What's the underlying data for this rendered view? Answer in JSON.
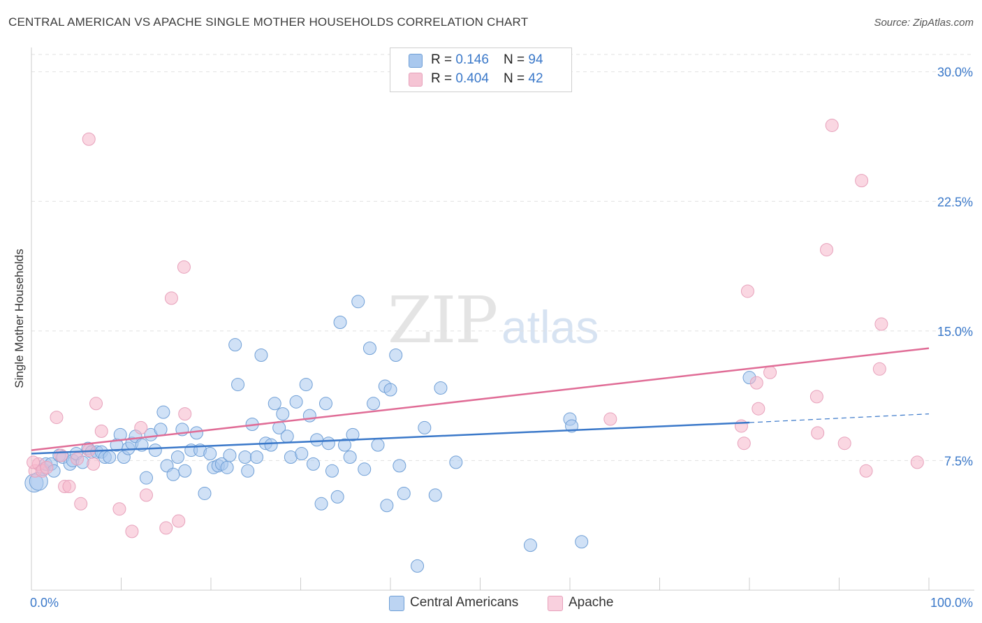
{
  "title": "CENTRAL AMERICAN VS APACHE SINGLE MOTHER HOUSEHOLDS CORRELATION CHART",
  "source": "Source: ZipAtlas.com",
  "watermark": {
    "zip": "ZIP",
    "atlas": "atlas"
  },
  "legend": {
    "rows": [
      {
        "r_label": "R = ",
        "r_value": "0.146",
        "n_label": "N = ",
        "n_value": "94"
      },
      {
        "r_label": "R = ",
        "r_value": "0.404",
        "n_label": "N = ",
        "n_value": "42"
      }
    ]
  },
  "bottom_legend": {
    "series1": "Central Americans",
    "series2": "Apache"
  },
  "colors": {
    "blue": "#3a78c9",
    "blue_fill": "#a9c8ee",
    "pink": "#e06c96",
    "pink_fill": "#f5b7cb",
    "grid": "#e1e1e1"
  },
  "chart_data": {
    "type": "scatter",
    "title": "CENTRAL AMERICAN VS APACHE SINGLE MOTHER HOUSEHOLDS CORRELATION CHART",
    "xlabel": "",
    "ylabel": "Single Mother Households",
    "xlim": [
      0,
      100
    ],
    "ylim": [
      0,
      31
    ],
    "x_tick_labels": [
      "0.0%",
      "100.0%"
    ],
    "y_ticks": [
      7.5,
      15.0,
      22.5,
      30.0
    ],
    "y_tick_labels": [
      "7.5%",
      "15.0%",
      "22.5%",
      "30.0%"
    ],
    "grid": "horizontal dashed",
    "legend_position": "top-center",
    "series": [
      {
        "name": "Central Americans",
        "r": 0.146,
        "n": 94,
        "trend": {
          "x0": 0,
          "y0": 7.9,
          "x1": 80,
          "y1": 9.7,
          "dashed_to_x": 100,
          "dashed_to_y": 10.2
        },
        "points": [
          [
            0.3,
            6.2
          ],
          [
            0.8,
            6.3
          ],
          [
            1.3,
            7.0
          ],
          [
            1.6,
            7.3
          ],
          [
            2.2,
            7.3
          ],
          [
            2.5,
            6.9
          ],
          [
            3.1,
            7.8
          ],
          [
            3.5,
            7.7
          ],
          [
            4.3,
            7.3
          ],
          [
            4.6,
            7.5
          ],
          [
            5.0,
            7.9
          ],
          [
            5.7,
            7.4
          ],
          [
            6.3,
            8.2
          ],
          [
            6.7,
            8.0
          ],
          [
            7.3,
            8.0
          ],
          [
            7.8,
            8.0
          ],
          [
            8.2,
            7.7
          ],
          [
            8.7,
            7.7
          ],
          [
            9.5,
            8.4
          ],
          [
            9.9,
            9.0
          ],
          [
            10.3,
            7.7
          ],
          [
            10.8,
            8.2
          ],
          [
            11.2,
            8.5
          ],
          [
            11.6,
            8.9
          ],
          [
            12.3,
            8.4
          ],
          [
            12.8,
            6.5
          ],
          [
            13.3,
            9.0
          ],
          [
            13.8,
            8.1
          ],
          [
            14.4,
            9.3
          ],
          [
            14.7,
            10.3
          ],
          [
            15.1,
            7.2
          ],
          [
            15.8,
            6.7
          ],
          [
            16.3,
            7.7
          ],
          [
            16.8,
            9.3
          ],
          [
            17.1,
            6.9
          ],
          [
            17.8,
            8.1
          ],
          [
            18.4,
            9.1
          ],
          [
            18.8,
            8.1
          ],
          [
            19.3,
            5.6
          ],
          [
            19.9,
            7.9
          ],
          [
            20.3,
            7.1
          ],
          [
            20.8,
            7.2
          ],
          [
            21.2,
            7.3
          ],
          [
            21.8,
            7.1
          ],
          [
            22.1,
            7.8
          ],
          [
            22.7,
            14.2
          ],
          [
            23.0,
            11.9
          ],
          [
            23.8,
            7.7
          ],
          [
            24.1,
            6.9
          ],
          [
            24.6,
            9.6
          ],
          [
            25.1,
            7.7
          ],
          [
            25.6,
            13.6
          ],
          [
            26.1,
            8.5
          ],
          [
            26.7,
            8.4
          ],
          [
            27.1,
            10.8
          ],
          [
            27.6,
            9.4
          ],
          [
            28.0,
            10.2
          ],
          [
            28.5,
            8.9
          ],
          [
            28.9,
            7.7
          ],
          [
            29.5,
            10.9
          ],
          [
            30.1,
            7.9
          ],
          [
            30.6,
            11.9
          ],
          [
            31.0,
            10.1
          ],
          [
            31.4,
            7.3
          ],
          [
            31.8,
            8.7
          ],
          [
            32.3,
            5.0
          ],
          [
            32.8,
            10.8
          ],
          [
            33.1,
            8.5
          ],
          [
            33.5,
            6.9
          ],
          [
            34.1,
            5.4
          ],
          [
            34.4,
            15.5
          ],
          [
            34.9,
            8.4
          ],
          [
            35.5,
            7.7
          ],
          [
            35.8,
            9.0
          ],
          [
            36.4,
            16.7
          ],
          [
            37.1,
            7.0
          ],
          [
            37.7,
            14.0
          ],
          [
            38.1,
            10.8
          ],
          [
            38.6,
            8.4
          ],
          [
            39.4,
            11.8
          ],
          [
            39.6,
            4.9
          ],
          [
            40.0,
            11.6
          ],
          [
            40.6,
            13.6
          ],
          [
            41.0,
            7.2
          ],
          [
            41.5,
            5.6
          ],
          [
            43.8,
            9.4
          ],
          [
            45.0,
            5.5
          ],
          [
            45.6,
            11.7
          ],
          [
            47.3,
            7.4
          ],
          [
            55.6,
            2.6
          ],
          [
            60.0,
            9.9
          ],
          [
            60.2,
            9.5
          ],
          [
            61.3,
            2.8
          ],
          [
            80.0,
            12.3
          ],
          [
            43.0,
            1.4
          ]
        ]
      },
      {
        "name": "Apache",
        "r": 0.404,
        "n": 42,
        "trend": {
          "x0": 0,
          "y0": 8.1,
          "x1": 100,
          "y1": 14.0
        },
        "points": [
          [
            0.4,
            6.9
          ],
          [
            0.8,
            7.3
          ],
          [
            1.2,
            6.9
          ],
          [
            1.7,
            7.1
          ],
          [
            2.8,
            10.0
          ],
          [
            3.3,
            7.8
          ],
          [
            3.7,
            6.0
          ],
          [
            4.2,
            6.0
          ],
          [
            5.1,
            7.6
          ],
          [
            5.5,
            5.0
          ],
          [
            6.4,
            8.1
          ],
          [
            6.9,
            7.3
          ],
          [
            6.4,
            26.1
          ],
          [
            7.2,
            10.8
          ],
          [
            7.8,
            9.2
          ],
          [
            9.8,
            4.7
          ],
          [
            11.2,
            3.4
          ],
          [
            12.2,
            9.4
          ],
          [
            12.8,
            5.5
          ],
          [
            15.0,
            3.6
          ],
          [
            15.6,
            16.9
          ],
          [
            16.4,
            4.0
          ],
          [
            17.1,
            10.2
          ],
          [
            17.0,
            18.7
          ],
          [
            64.5,
            9.9
          ],
          [
            79.1,
            9.5
          ],
          [
            79.4,
            8.5
          ],
          [
            80.8,
            12.0
          ],
          [
            79.8,
            17.3
          ],
          [
            81.0,
            10.5
          ],
          [
            82.3,
            12.6
          ],
          [
            87.5,
            11.2
          ],
          [
            87.6,
            9.1
          ],
          [
            88.6,
            19.7
          ],
          [
            89.2,
            26.9
          ],
          [
            90.6,
            8.5
          ],
          [
            92.5,
            23.7
          ],
          [
            93.0,
            6.9
          ],
          [
            94.5,
            12.8
          ],
          [
            94.7,
            15.4
          ],
          [
            98.7,
            7.4
          ],
          [
            0.2,
            7.4
          ]
        ]
      }
    ]
  }
}
